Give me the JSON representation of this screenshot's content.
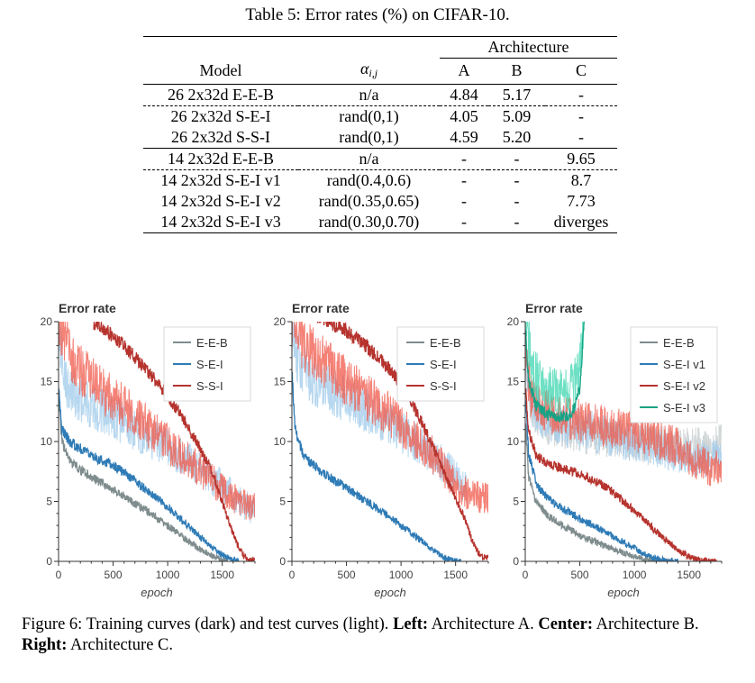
{
  "table": {
    "caption": "Table 5: Error rates (%) on CIFAR-10.",
    "architecture_label": "Architecture",
    "headers": {
      "model": "Model",
      "alpha_symbol": "α",
      "alpha_sub": "i,j",
      "a": "A",
      "b": "B",
      "c": "C"
    },
    "rows": [
      {
        "model": "26 2x32d E-E-B",
        "alpha": "n/a",
        "a": "4.84",
        "b": "5.17",
        "c": "-"
      },
      {
        "model": "26 2x32d S-E-I",
        "alpha": "rand(0,1)",
        "a": "4.05",
        "b": "5.09",
        "c": "-"
      },
      {
        "model": "26 2x32d S-S-I",
        "alpha": "rand(0,1)",
        "a": "4.59",
        "b": "5.20",
        "c": "-"
      },
      {
        "model": "14 2x32d E-E-B",
        "alpha": "n/a",
        "a": "-",
        "b": "-",
        "c": "9.65"
      },
      {
        "model": "14 2x32d S-E-I v1",
        "alpha": "rand(0.4,0.6)",
        "a": "-",
        "b": "-",
        "c": "8.7"
      },
      {
        "model": "14 2x32d S-E-I v2",
        "alpha": "rand(0.35,0.65)",
        "a": "-",
        "b": "-",
        "c": "7.73"
      },
      {
        "model": "14 2x32d S-E-I v3",
        "alpha": "rand(0.30,0.70)",
        "a": "-",
        "b": "-",
        "c": "diverges"
      }
    ]
  },
  "figure": {
    "caption_text1": "Figure 6: Training curves (dark) and test curves (light). ",
    "left_bold": "Left:",
    "left_text": " Architecture A. ",
    "center_bold": "Center:",
    "center_text": " Architecture B. ",
    "right_bold": "Right:",
    "right_text": " Architecture C."
  },
  "colors": {
    "gray_dark": "#7f8c8d",
    "gray_light": "#c3c9cb",
    "blue_dark": "#2e7bb6",
    "blue_light": "#9ecae9",
    "red_dark": "#b6332e",
    "red_light": "#f0584a",
    "teal_dark": "#17a385",
    "teal_light": "#3dd6b0"
  },
  "chart_data": [
    {
      "type": "line",
      "title": "Error rate",
      "xlabel": "epoch",
      "ylabel": "",
      "xlim": [
        0,
        1800
      ],
      "ylim": [
        0,
        20
      ],
      "xticks": [
        0,
        500,
        1000,
        1500
      ],
      "yticks": [
        0,
        5,
        10,
        15,
        20
      ],
      "legend": "top-right",
      "series": [
        {
          "name": "E-E-B",
          "color": "gray",
          "train": {
            "x": [
              0,
              30,
              100,
              200,
              300,
              400,
              500,
              600,
              700,
              800,
              900,
              1000,
              1100,
              1200,
              1300,
              1400,
              1500,
              1550
            ],
            "y": [
              14,
              10,
              8.4,
              7.6,
              7.0,
              6.5,
              6.0,
              5.4,
              4.8,
              4.3,
              3.6,
              3.0,
              2.3,
              1.6,
              1.0,
              0.5,
              0.1,
              0
            ]
          },
          "test": null
        },
        {
          "name": "S-E-I",
          "color": "blue",
          "train": {
            "x": [
              0,
              30,
              100,
              200,
              300,
              400,
              500,
              600,
              700,
              800,
              900,
              1000,
              1100,
              1200,
              1300,
              1400,
              1500,
              1600,
              1650
            ],
            "y": [
              15,
              11,
              10.0,
              9.4,
              8.8,
              8.4,
              8.0,
              7.4,
              6.7,
              6.0,
              5.3,
              4.5,
              3.7,
              2.9,
              2.0,
              1.2,
              0.5,
              0.1,
              0
            ]
          },
          "test": {
            "x": [
              0,
              50,
              200,
              400,
              600,
              800,
              1000,
              1200,
              1400,
              1600,
              1800
            ],
            "y": [
              20,
              15,
              13.5,
              12.5,
              11.5,
              10.5,
              9.5,
              8.3,
              7.0,
              5.5,
              4.1
            ]
          }
        },
        {
          "name": "S-S-I",
          "color": "red",
          "train": {
            "x": [
              320,
              400,
              500,
              600,
              700,
              800,
              900,
              1000,
              1100,
              1200,
              1300,
              1400,
              1450,
              1500,
              1550,
              1600,
              1650,
              1700,
              1750,
              1800
            ],
            "y": [
              20,
              19.5,
              18.8,
              18.0,
              17.0,
              16.0,
              15.0,
              13.8,
              12.5,
              11.0,
              9.4,
              7.6,
              6.4,
              5.0,
              3.6,
              2.3,
              1.2,
              0.4,
              0.1,
              0.0
            ]
          },
          "test": {
            "x": [
              0,
              50,
              150,
              300,
              500,
              700,
              900,
              1100,
              1300,
              1500,
              1600,
              1700,
              1800
            ],
            "y": [
              20,
              19,
              16.5,
              15.0,
              13.6,
              12.2,
              10.6,
              9.0,
              7.6,
              6.0,
              5.3,
              4.8,
              4.5
            ]
          }
        }
      ]
    },
    {
      "type": "line",
      "title": "Error rate",
      "xlabel": "epoch",
      "ylabel": "",
      "xlim": [
        0,
        1800
      ],
      "ylim": [
        0,
        20
      ],
      "xticks": [
        0,
        500,
        1000,
        1500
      ],
      "yticks": [
        0,
        5,
        10,
        15,
        20
      ],
      "legend": "top-right",
      "series": [
        {
          "name": "E-E-B",
          "color": "gray",
          "train": null,
          "test": null
        },
        {
          "name": "S-E-I",
          "color": "blue",
          "train": {
            "x": [
              0,
              30,
              100,
              200,
              300,
              400,
              500,
              600,
              700,
              800,
              900,
              1000,
              1100,
              1200,
              1300,
              1400,
              1500,
              1550
            ],
            "y": [
              16,
              11,
              9.0,
              8.0,
              7.3,
              6.7,
              6.1,
              5.5,
              4.9,
              4.3,
              3.7,
              3.0,
              2.3,
              1.6,
              0.9,
              0.3,
              0.05,
              0
            ]
          },
          "test": {
            "x": [
              0,
              50,
              200,
              400,
              600,
              800,
              1000,
              1200,
              1400,
              1500,
              1600
            ],
            "y": [
              20,
              17,
              15,
              14,
              13,
              12,
              10.8,
              9.5,
              8.0,
              7.0,
              6.0
            ]
          }
        },
        {
          "name": "S-S-I",
          "color": "red",
          "train": {
            "x": [
              0,
              100,
              300,
              500,
              700,
              900,
              1000,
              1100,
              1200,
              1300,
              1400,
              1500,
              1600,
              1650,
              1700,
              1750,
              1800
            ],
            "y": [
              21,
              21,
              20.2,
              19.2,
              17.8,
              16.0,
              14.7,
              13.2,
              11.4,
              9.4,
              7.3,
              5.3,
              3.2,
              1.8,
              0.8,
              0.4,
              0.3
            ]
          },
          "test": {
            "x": [
              0,
              100,
              300,
              500,
              700,
              900,
              1100,
              1300,
              1450,
              1550,
              1650,
              1800
            ],
            "y": [
              20,
              18,
              16.5,
              15.0,
              13.6,
              12.2,
              10.6,
              8.8,
              7.0,
              6.0,
              5.4,
              5.3
            ]
          }
        }
      ]
    },
    {
      "type": "line",
      "title": "Error rate",
      "xlabel": "epoch",
      "ylabel": "",
      "xlim": [
        0,
        1800
      ],
      "ylim": [
        0,
        20
      ],
      "xticks": [
        0,
        500,
        1000,
        1500
      ],
      "yticks": [
        0,
        5,
        10,
        15,
        20
      ],
      "legend": "top-right",
      "series": [
        {
          "name": "E-E-B",
          "color": "gray",
          "train": {
            "x": [
              0,
              30,
              100,
              200,
              300,
              400,
              500,
              600,
              700,
              800,
              900,
              1000,
              1100,
              1200,
              1300,
              1350
            ],
            "y": [
              12,
              7.0,
              5.0,
              3.9,
              3.2,
              2.7,
              2.2,
              1.8,
              1.4,
              1.0,
              0.7,
              0.4,
              0.2,
              0.05,
              0,
              0
            ]
          },
          "test": {
            "x": [
              0,
              50,
              200,
              400,
              600,
              800,
              1000,
              1200,
              1400,
              1500,
              1600,
              1700,
              1800
            ],
            "y": [
              17,
              13,
              11.5,
              11.0,
              10.6,
              10.3,
              10.0,
              9.8,
              9.6,
              9.5,
              9.6,
              9.7,
              9.8
            ]
          }
        },
        {
          "name": "S-E-I v1",
          "color": "blue",
          "train": {
            "x": [
              0,
              30,
              100,
              200,
              300,
              400,
              500,
              600,
              700,
              800,
              900,
              1000,
              1100,
              1200,
              1300,
              1400
            ],
            "y": [
              14,
              9.0,
              6.5,
              5.3,
              4.6,
              4.1,
              3.6,
              3.1,
              2.6,
              2.1,
              1.6,
              1.1,
              0.6,
              0.2,
              0.05,
              0
            ]
          },
          "test": {
            "x": [
              0,
              50,
              200,
              400,
              600,
              800,
              1000,
              1200,
              1400,
              1500,
              1600,
              1700,
              1800
            ],
            "y": [
              17,
              13.2,
              11.7,
              11.2,
              10.8,
              10.4,
              10.0,
              9.5,
              9.0,
              8.7,
              8.5,
              8.6,
              8.6
            ]
          }
        },
        {
          "name": "S-E-I v2",
          "color": "red",
          "train": {
            "x": [
              0,
              30,
              100,
              200,
              300,
              400,
              500,
              600,
              700,
              800,
              900,
              1000,
              1100,
              1200,
              1300,
              1400,
              1500,
              1600,
              1700,
              1750
            ],
            "y": [
              15,
              11,
              8.8,
              8.2,
              7.9,
              7.6,
              7.3,
              6.9,
              6.4,
              5.8,
              5.0,
              4.2,
              3.4,
              2.5,
              1.7,
              0.9,
              0.4,
              0.1,
              0,
              0
            ]
          },
          "test": {
            "x": [
              0,
              50,
              200,
              400,
              600,
              800,
              1000,
              1200,
              1400,
              1500,
              1600,
              1700,
              1800
            ],
            "y": [
              17,
              14,
              12.5,
              12.0,
              11.6,
              11.2,
              10.8,
              10.3,
              9.5,
              8.8,
              8.2,
              7.8,
              7.7
            ]
          }
        },
        {
          "name": "S-E-I v3",
          "color": "teal",
          "train": {
            "x": [
              0,
              30,
              100,
              200,
              300,
              400,
              450,
              500,
              520,
              540
            ],
            "y": [
              20,
              15,
              13.0,
              12.3,
              12.0,
              12.2,
              12.8,
              14.5,
              17,
              20.5
            ]
          },
          "test": {
            "x": [
              0,
              50,
              150,
              300,
              400,
              480,
              520,
              540
            ],
            "y": [
              20,
              17,
              14.5,
              14.0,
              14.4,
              15.5,
              18,
              20.5
            ]
          }
        }
      ]
    }
  ]
}
